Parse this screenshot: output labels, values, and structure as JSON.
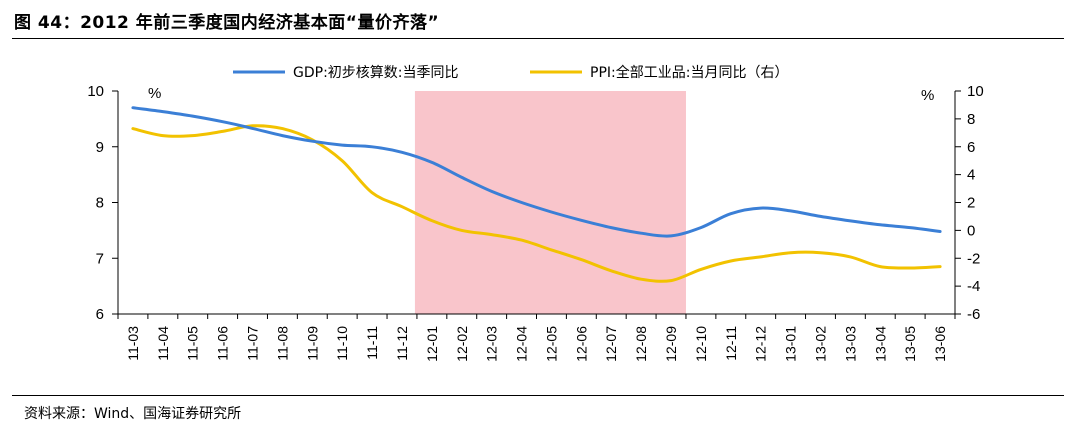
{
  "figure": {
    "title": "图 44：2012 年前三季度国内经济基本面“量价齐落”",
    "source": "资料来源：Wind、国海证券研究所"
  },
  "chart_data": {
    "type": "line",
    "x": [
      "11-03",
      "11-04",
      "11-05",
      "11-06",
      "11-07",
      "11-08",
      "11-09",
      "11-10",
      "11-11",
      "11-12",
      "12-01",
      "12-02",
      "12-03",
      "12-04",
      "12-05",
      "12-06",
      "12-07",
      "12-08",
      "12-09",
      "12-10",
      "12-11",
      "12-12",
      "13-01",
      "13-02",
      "13-03",
      "13-04",
      "13-05",
      "13-06"
    ],
    "left_axis": {
      "unit_label": "%",
      "ylim": [
        6,
        10
      ],
      "ticks": [
        6,
        7,
        8,
        9,
        10
      ]
    },
    "right_axis": {
      "unit_label": "%",
      "ylim": [
        -6,
        10
      ],
      "ticks": [
        -6,
        -4,
        -2,
        0,
        2,
        4,
        6,
        8,
        10
      ]
    },
    "shaded_region": {
      "from": "12-01",
      "to": "12-09",
      "color": "#f9c5cb"
    },
    "series": [
      {
        "name": "GDP:初步核算数:当季同比",
        "axis": "left",
        "color": "#3b7fd6",
        "values": [
          9.7,
          9.63,
          9.55,
          9.45,
          9.33,
          9.2,
          9.1,
          9.03,
          9.0,
          8.9,
          8.72,
          8.45,
          8.2,
          8.0,
          7.83,
          7.68,
          7.55,
          7.45,
          7.4,
          7.55,
          7.8,
          7.9,
          7.85,
          7.75,
          7.67,
          7.6,
          7.55,
          7.48
        ]
      },
      {
        "name": "PPI:全部工业品:当月同比（右）",
        "axis": "right",
        "color": "#f2c200",
        "values": [
          7.3,
          6.8,
          6.8,
          7.1,
          7.5,
          7.3,
          6.5,
          5.0,
          2.7,
          1.7,
          0.7,
          0.0,
          -0.3,
          -0.7,
          -1.4,
          -2.1,
          -2.9,
          -3.5,
          -3.6,
          -2.8,
          -2.2,
          -1.9,
          -1.6,
          -1.6,
          -1.9,
          -2.6,
          -2.7,
          -2.6
        ]
      }
    ]
  }
}
